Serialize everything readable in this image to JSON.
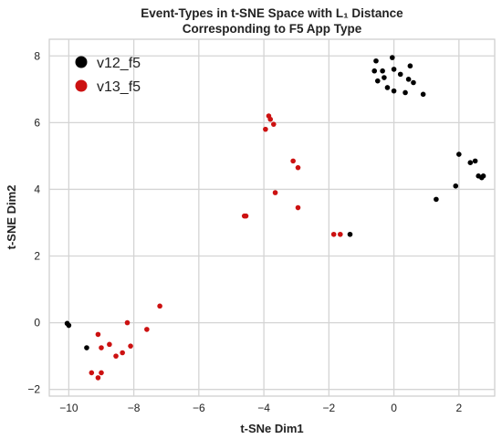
{
  "chart_data": {
    "type": "scatter",
    "title_line1": "Event-Types in t-SNE Space with L₁ Distance",
    "title_line2": "Corresponding to F5 App Type",
    "xlabel": "t-SNe Dim1",
    "ylabel": "t-SNE Dim2",
    "xlim": [
      -10.6,
      3.1
    ],
    "ylim": [
      -2.2,
      8.5
    ],
    "xticks": [
      -10,
      -8,
      -6,
      -4,
      -2,
      0,
      2
    ],
    "yticks": [
      -2,
      0,
      2,
      4,
      6,
      8
    ],
    "grid": true,
    "legend_position": "top-left",
    "series": [
      {
        "name": "v12_f5",
        "color": "#000000",
        "x": [
          -0.05,
          -0.55,
          -0.35,
          -0.6,
          0.0,
          0.5,
          -0.3,
          0.2,
          0.45,
          -0.5,
          0.6,
          -0.2,
          0.0,
          0.35,
          0.9,
          2.0,
          2.35,
          2.5,
          2.75,
          2.7,
          2.6,
          1.9,
          1.3,
          -1.35,
          -10.05,
          -10.0,
          -9.45
        ],
        "y": [
          7.95,
          7.85,
          7.55,
          7.55,
          7.6,
          7.7,
          7.35,
          7.45,
          7.3,
          7.25,
          7.2,
          7.05,
          6.95,
          6.9,
          6.85,
          5.05,
          4.8,
          4.85,
          4.4,
          4.35,
          4.4,
          4.1,
          3.7,
          2.65,
          -0.02,
          -0.08,
          -0.75
        ]
      },
      {
        "name": "v13_f5",
        "color": "#cc1111",
        "x": [
          -3.85,
          -3.8,
          -3.7,
          -3.95,
          -3.1,
          -2.95,
          -3.65,
          -2.95,
          -4.6,
          -4.55,
          -1.85,
          -1.65,
          -7.2,
          -8.2,
          -7.6,
          -9.1,
          -8.75,
          -9.0,
          -8.1,
          -8.35,
          -8.55,
          -9.3,
          -9.0,
          -9.1
        ],
        "y": [
          6.2,
          6.1,
          5.95,
          5.8,
          4.85,
          4.65,
          3.9,
          3.45,
          3.2,
          3.2,
          2.65,
          2.65,
          0.5,
          0.0,
          -0.2,
          -0.35,
          -0.65,
          -0.75,
          -0.7,
          -0.9,
          -1.0,
          -1.5,
          -1.5,
          -1.65
        ]
      }
    ]
  }
}
